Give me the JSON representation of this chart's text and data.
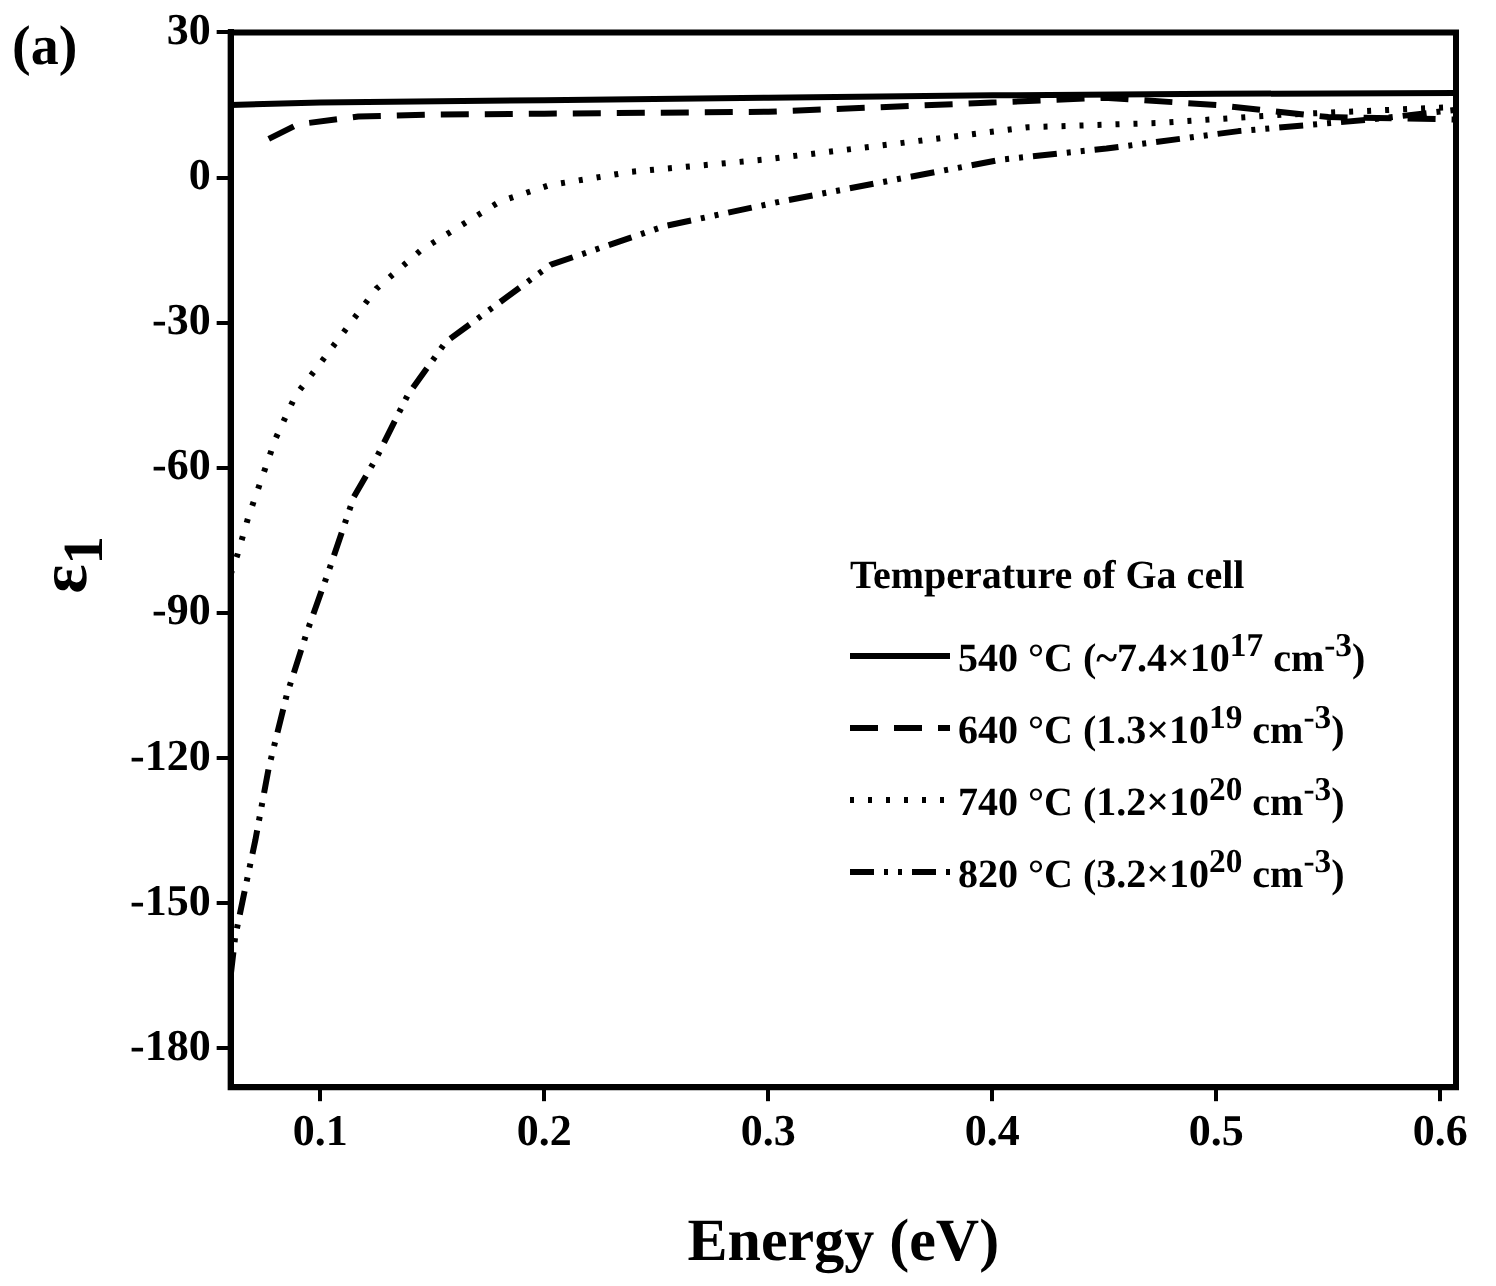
{
  "chart_data": {
    "type": "line",
    "xlabel": "Energy (eV)",
    "ylabel": "ε$_{1}$",
    "legend_title": "Temperature of Ga cell",
    "annotations": [
      "(a)"
    ],
    "xlim": [
      0.06,
      0.607
    ],
    "xticks": [
      0.1,
      0.2,
      0.3,
      0.4,
      0.5,
      0.6
    ],
    "ylim": [
      -188,
      30
    ],
    "yticks": [
      30,
      0,
      -30,
      -60,
      -90,
      -120,
      -150,
      -180
    ],
    "grid": false,
    "legend": "bottom right",
    "marker": "none",
    "series": [
      {
        "name": "540 °C (~7.4×10$^{17}$ cm$^{-3}$)",
        "color": "#000000",
        "line_style": "solid",
        "x": [
          0.06,
          0.1,
          0.2,
          0.3,
          0.4,
          0.5,
          0.607
        ],
        "values": [
          15,
          15.5,
          16,
          16.5,
          17,
          17.3,
          17.5
        ]
      },
      {
        "name": "640 °C (1.3×10$^{19}$ cm$^{-3}$)",
        "color": "#000000",
        "line_style": "dashed",
        "x": [
          0.077,
          0.09,
          0.117,
          0.15,
          0.2,
          0.3,
          0.4,
          0.45,
          0.5,
          0.55,
          0.607
        ],
        "values": [
          8,
          11,
          12.6,
          13,
          13.2,
          13.6,
          15.5,
          16.5,
          15,
          12.5,
          12
        ]
      },
      {
        "name": "740 °C (1.2×10$^{20}$ cm$^{-3}$)",
        "color": "#000000",
        "line_style": "dotted",
        "x": [
          0.06,
          0.063,
          0.068,
          0.08,
          0.089,
          0.099,
          0.125,
          0.145,
          0.18,
          0.202,
          0.239,
          0.298,
          0.357,
          0.416,
          0.475,
          0.53,
          0.607
        ],
        "values": [
          -82,
          -78,
          -70,
          -54,
          -45,
          -39,
          -23,
          -15,
          -5,
          -1.6,
          1.2,
          3.7,
          7,
          10.4,
          11.3,
          13,
          14.6
        ]
      },
      {
        "name": "820 °C (3.2×10$^{20}$ cm$^{-3}$)",
        "color": "#000000",
        "line_style": "dashdot",
        "x": [
          0.06,
          0.062,
          0.066,
          0.071,
          0.077,
          0.085,
          0.094,
          0.104,
          0.115,
          0.125,
          0.139,
          0.156,
          0.203,
          0.254,
          0.305,
          0.357,
          0.404,
          0.451,
          0.51,
          0.569,
          0.607
        ],
        "values": [
          -165,
          -157,
          -148,
          -137,
          -122,
          -107,
          -94,
          -81,
          -66,
          -58,
          -45,
          -34,
          -18,
          -10,
          -5,
          -0.4,
          3.7,
          6,
          9.6,
          12,
          14
        ]
      }
    ]
  }
}
